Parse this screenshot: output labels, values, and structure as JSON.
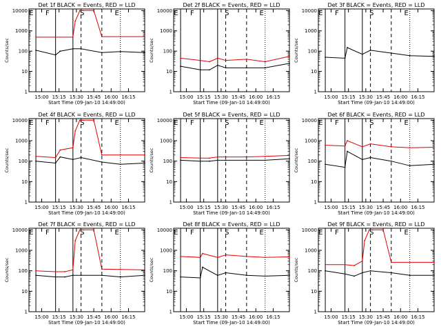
{
  "chart_data": {
    "type": "line",
    "shared": {
      "xlabel": "Start Time (09-Jan-10 14:49:00)",
      "ylabel": "Counts/sec",
      "x_ticks": [
        "15:00",
        "15:15",
        "15:30",
        "15:45",
        "16:00",
        "16:15"
      ],
      "x_range": [
        "14:49",
        "16:29"
      ],
      "y_scale": "log",
      "ylim": [
        1,
        12000
      ],
      "y_ticks": [
        "1",
        "10",
        "100",
        "1000",
        "10000"
      ],
      "legend": "BLACK = Events, RED = LLD",
      "series_colors": {
        "events": "#000000",
        "lld": "#e00000"
      },
      "markers": {
        "E1": "14:51",
        "F": "15:05",
        "S": "15:35",
        "E2": "16:05",
        "lines": {
          "solid1": "14:55",
          "solid2": "15:12",
          "solid3": "15:27",
          "dash1": "15:34",
          "dash2": "15:52",
          "dot1": "16:08",
          "dot2": "16:29"
        }
      }
    },
    "panels": [
      {
        "title": "Det 1f BLACK = Events, RED = LLD",
        "events": {
          "x": [
            "14:55",
            "15:12",
            "15:16",
            "15:27",
            "15:34",
            "15:52",
            "16:08",
            "16:29"
          ],
          "y": [
            110,
            65,
            100,
            130,
            130,
            85,
            95,
            85
          ]
        },
        "lld": {
          "x": [
            "14:55",
            "15:27",
            "15:29",
            "15:33",
            "15:45",
            "15:52",
            "16:29"
          ],
          "y": [
            490,
            490,
            3000,
            10000,
            10000,
            520,
            520
          ]
        }
      },
      {
        "title": "Det 2f BLACK = Events, RED = LLD",
        "events": {
          "x": [
            "14:55",
            "15:12",
            "15:20",
            "15:27",
            "15:34",
            "15:52",
            "16:08",
            "16:29"
          ],
          "y": [
            18,
            12,
            12,
            20,
            15,
            15,
            15,
            25
          ]
        },
        "lld": {
          "x": [
            "14:55",
            "15:12",
            "15:20",
            "15:27",
            "15:34",
            "15:52",
            "16:08",
            "16:29"
          ],
          "y": [
            45,
            35,
            30,
            45,
            35,
            40,
            30,
            55
          ]
        }
      },
      {
        "title": "Det 3f BLACK = Events, RED = LLD",
        "events": {
          "x": [
            "14:55",
            "15:12",
            "15:14",
            "15:27",
            "15:34",
            "15:52",
            "16:08",
            "16:29"
          ],
          "y": [
            50,
            45,
            150,
            70,
            110,
            80,
            60,
            55
          ]
        },
        "lld": {
          "x": [],
          "y": []
        }
      },
      {
        "title": "Det 4f BLACK = Events, RED = LLD",
        "events": {
          "x": [
            "14:55",
            "15:12",
            "15:16",
            "15:27",
            "15:34",
            "15:52",
            "16:08",
            "16:29"
          ],
          "y": [
            100,
            80,
            160,
            120,
            150,
            90,
            70,
            80
          ]
        },
        "lld": {
          "x": [
            "14:55",
            "15:12",
            "15:16",
            "15:27",
            "15:29",
            "15:33",
            "15:45",
            "15:52",
            "16:29"
          ],
          "y": [
            170,
            150,
            350,
            450,
            3000,
            10000,
            10000,
            200,
            200
          ]
        }
      },
      {
        "title": "Det 5f BLACK = Events, RED = LLD",
        "events": {
          "x": [
            "14:55",
            "15:12",
            "15:20",
            "15:27",
            "15:34",
            "15:52",
            "16:08",
            "16:29"
          ],
          "y": [
            110,
            100,
            100,
            110,
            110,
            110,
            110,
            130
          ]
        },
        "lld": {
          "x": [
            "14:55",
            "15:12",
            "15:20",
            "15:27",
            "15:34",
            "15:52",
            "16:08",
            "16:29"
          ],
          "y": [
            150,
            140,
            140,
            160,
            160,
            160,
            170,
            190
          ]
        }
      },
      {
        "title": "Det 6f BLACK = Events, RED = LLD",
        "events": {
          "x": [
            "14:55",
            "15:12",
            "15:14",
            "15:27",
            "15:34",
            "15:52",
            "16:08",
            "16:29"
          ],
          "y": [
            70,
            50,
            300,
            120,
            150,
            100,
            60,
            70
          ]
        },
        "lld": {
          "x": [
            "14:55",
            "15:12",
            "15:14",
            "15:27",
            "15:34",
            "15:52",
            "16:08",
            "16:29"
          ],
          "y": [
            600,
            550,
            1000,
            500,
            700,
            500,
            450,
            480
          ]
        }
      },
      {
        "title": "Det 7f BLACK = Events, RED = LLD",
        "events": {
          "x": [
            "14:55",
            "15:12",
            "15:20",
            "15:27",
            "15:34",
            "15:52",
            "16:08",
            "16:29"
          ],
          "y": [
            60,
            50,
            50,
            60,
            60,
            60,
            50,
            60
          ]
        },
        "lld": {
          "x": [
            "14:55",
            "15:12",
            "15:20",
            "15:27",
            "15:29",
            "15:33",
            "15:45",
            "15:52",
            "16:29"
          ],
          "y": [
            100,
            90,
            90,
            110,
            3000,
            10000,
            10000,
            120,
            110
          ]
        }
      },
      {
        "title": "Det 8f BLACK = Events, RED = LLD",
        "events": {
          "x": [
            "14:55",
            "15:12",
            "15:14",
            "15:27",
            "15:34",
            "15:52",
            "16:08",
            "16:29"
          ],
          "y": [
            50,
            45,
            150,
            60,
            80,
            60,
            55,
            60
          ]
        },
        "lld": {
          "x": [
            "14:55",
            "15:12",
            "15:14",
            "15:27",
            "15:34",
            "15:52",
            "16:08",
            "16:29"
          ],
          "y": [
            500,
            450,
            700,
            450,
            600,
            500,
            450,
            480
          ]
        }
      },
      {
        "title": "Det 9f BLACK = Events, RED = LLD",
        "events": {
          "x": [
            "14:55",
            "15:12",
            "15:20",
            "15:27",
            "15:34",
            "15:52",
            "16:08",
            "16:29"
          ],
          "y": [
            100,
            70,
            55,
            80,
            100,
            80,
            60,
            60
          ]
        },
        "lld": {
          "x": [
            "14:55",
            "15:12",
            "15:20",
            "15:27",
            "15:29",
            "15:33",
            "15:45",
            "15:52",
            "16:29"
          ],
          "y": [
            200,
            200,
            180,
            300,
            3000,
            10000,
            10000,
            260,
            260
          ]
        }
      }
    ]
  }
}
